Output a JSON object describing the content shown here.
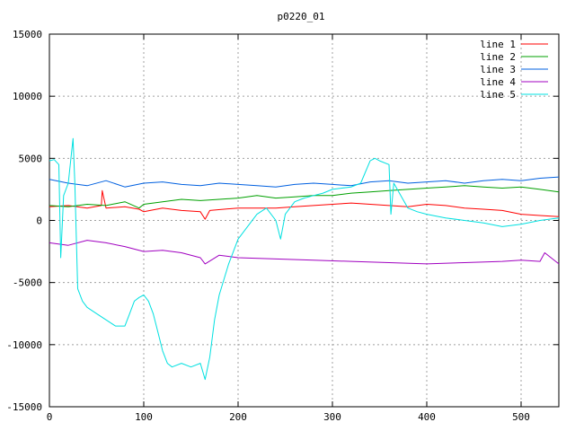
{
  "chart_data": {
    "type": "line",
    "title": "p0220_01",
    "xlabel": "",
    "ylabel": "",
    "xlim": [
      0,
      540
    ],
    "ylim": [
      -15000,
      15000
    ],
    "x_ticks": [
      0,
      100,
      200,
      300,
      400,
      500
    ],
    "y_ticks": [
      -15000,
      -10000,
      -5000,
      0,
      5000,
      10000,
      15000
    ],
    "grid": true,
    "legend_position": "top-right",
    "series": [
      {
        "name": "line 1",
        "color": "#ff0000",
        "x": [
          0,
          20,
          40,
          55,
          56,
          60,
          80,
          95,
          100,
          120,
          140,
          160,
          165,
          170,
          200,
          240,
          260,
          280,
          300,
          320,
          340,
          360,
          380,
          400,
          420,
          440,
          460,
          480,
          500,
          520,
          540
        ],
        "y": [
          1100,
          1200,
          1000,
          1200,
          2400,
          1000,
          1100,
          900,
          700,
          1000,
          800,
          700,
          100,
          800,
          1000,
          1000,
          1100,
          1200,
          1300,
          1400,
          1300,
          1200,
          1100,
          1300,
          1200,
          1000,
          900,
          800,
          500,
          400,
          300
        ]
      },
      {
        "name": "line 2",
        "color": "#00a000",
        "x": [
          0,
          20,
          40,
          60,
          80,
          95,
          100,
          120,
          140,
          160,
          180,
          200,
          220,
          240,
          260,
          280,
          300,
          320,
          340,
          360,
          380,
          400,
          420,
          440,
          460,
          480,
          500,
          520,
          540
        ],
        "y": [
          1200,
          1100,
          1300,
          1200,
          1500,
          1000,
          1300,
          1500,
          1700,
          1600,
          1700,
          1800,
          2000,
          1800,
          1900,
          2000,
          2000,
          2200,
          2300,
          2400,
          2500,
          2600,
          2700,
          2800,
          2700,
          2600,
          2700,
          2500,
          2300
        ]
      },
      {
        "name": "line 3",
        "color": "#0060e0",
        "x": [
          0,
          20,
          40,
          60,
          80,
          100,
          120,
          140,
          160,
          180,
          200,
          220,
          240,
          260,
          280,
          300,
          320,
          340,
          360,
          380,
          400,
          420,
          440,
          460,
          480,
          500,
          520,
          540
        ],
        "y": [
          3300,
          3000,
          2800,
          3200,
          2700,
          3000,
          3100,
          2900,
          2800,
          3000,
          2900,
          2800,
          2700,
          2900,
          3000,
          2900,
          2800,
          3100,
          3200,
          3000,
          3100,
          3200,
          3000,
          3200,
          3300,
          3200,
          3400,
          3500
        ]
      },
      {
        "name": "line 4",
        "color": "#a000c0",
        "x": [
          0,
          20,
          40,
          60,
          80,
          100,
          120,
          140,
          160,
          165,
          180,
          200,
          240,
          280,
          320,
          360,
          400,
          440,
          480,
          500,
          520,
          525,
          540
        ],
        "y": [
          -1800,
          -2000,
          -1600,
          -1800,
          -2100,
          -2500,
          -2400,
          -2600,
          -3000,
          -3500,
          -2800,
          -3000,
          -3100,
          -3200,
          -3300,
          -3400,
          -3500,
          -3400,
          -3300,
          -3200,
          -3300,
          -2600,
          -3500
        ]
      },
      {
        "name": "line 5",
        "color": "#00e0e0",
        "x": [
          0,
          5,
          10,
          12,
          15,
          20,
          25,
          27,
          30,
          35,
          40,
          50,
          60,
          70,
          80,
          85,
          90,
          95,
          100,
          105,
          110,
          115,
          120,
          125,
          130,
          140,
          150,
          160,
          165,
          170,
          175,
          180,
          190,
          200,
          210,
          220,
          230,
          240,
          245,
          250,
          260,
          270,
          280,
          290,
          300,
          310,
          320,
          330,
          340,
          345,
          350,
          360,
          362,
          365,
          380,
          390,
          400,
          420,
          440,
          460,
          480,
          500,
          520,
          540
        ],
        "y": [
          4800,
          4900,
          4500,
          -3000,
          2000,
          3000,
          6600,
          3000,
          -5500,
          -6500,
          -7000,
          -7500,
          -8000,
          -8500,
          -8500,
          -7500,
          -6500,
          -6200,
          -6000,
          -6500,
          -7500,
          -9000,
          -10500,
          -11500,
          -11800,
          -11500,
          -11800,
          -11500,
          -12800,
          -11000,
          -8000,
          -6000,
          -3500,
          -1500,
          -500,
          500,
          1000,
          0,
          -1500,
          500,
          1500,
          1800,
          2000,
          2200,
          2500,
          2600,
          2700,
          3000,
          4800,
          5000,
          4800,
          4500,
          500,
          3000,
          1000,
          700,
          500,
          200,
          0,
          -200,
          -500,
          -300,
          0,
          200
        ]
      }
    ]
  }
}
